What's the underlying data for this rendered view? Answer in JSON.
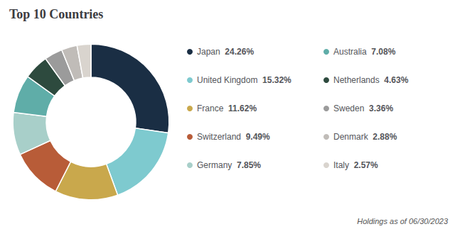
{
  "chart_data": {
    "type": "pie",
    "title": "Top 10 Countries",
    "categories": [
      "Japan",
      "United Kingdom",
      "France",
      "Switzerland",
      "Germany",
      "Australia",
      "Netherlands",
      "Sweden",
      "Denmark",
      "Italy"
    ],
    "values": [
      24.26,
      15.32,
      11.62,
      9.49,
      7.85,
      7.08,
      4.63,
      3.36,
      2.88,
      2.57
    ],
    "value_labels": [
      "24.26%",
      "15.32%",
      "11.62%",
      "9.49%",
      "7.85%",
      "7.08%",
      "4.63%",
      "3.36%",
      "2.88%",
      "2.57%"
    ],
    "colors": [
      "#1a2e44",
      "#7ecacf",
      "#c9a84c",
      "#b85c38",
      "#a8cfc9",
      "#5fada8",
      "#2d4a3e",
      "#9b9b9b",
      "#c0bcb8",
      "#d9d4ce"
    ],
    "legend": "right",
    "annotations": [
      "Holdings as of 06/30/2023"
    ]
  }
}
